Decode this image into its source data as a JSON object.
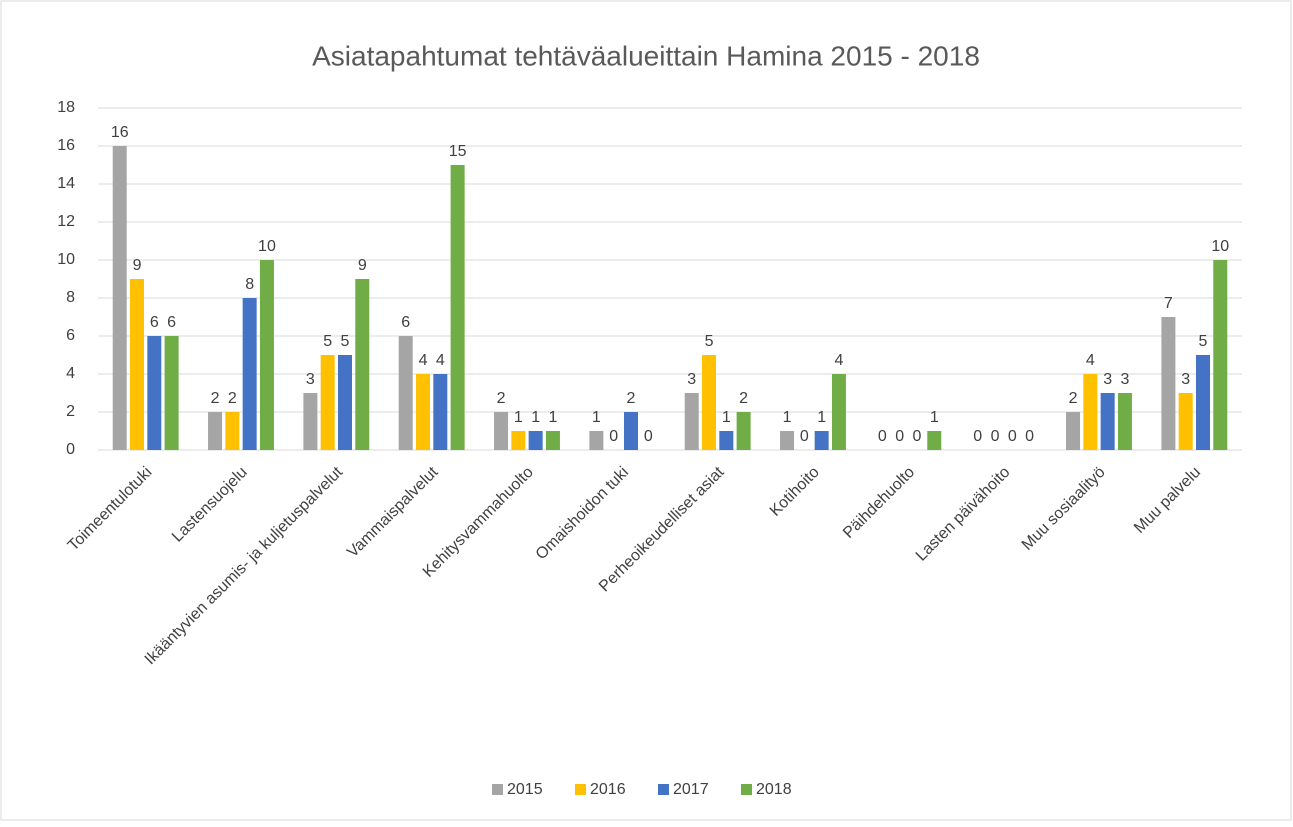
{
  "chart_data": {
    "type": "bar",
    "title": "Asiatapahtumat tehtäväalueittain Hamina 2015 - 2018",
    "categories": [
      "Toimeentulotuki",
      "Lastensuojelu",
      "Ikääntyvien asumis- ja kuljetuspalvelut",
      "Vammaispalvelut",
      "Kehitysvammahuolto",
      "Omaishoidon tuki",
      "Perheoikeudelliset asiat",
      "Kotihoito",
      "Päihdehuolto",
      "Lasten päivähoito",
      "Muu sosiaalityö",
      "Muu palvelu"
    ],
    "series": [
      {
        "name": "2015",
        "color": "#a5a5a5",
        "values": [
          16,
          2,
          3,
          6,
          2,
          1,
          3,
          1,
          0,
          0,
          2,
          7
        ]
      },
      {
        "name": "2016",
        "color": "#ffc000",
        "values": [
          9,
          2,
          5,
          4,
          1,
          0,
          5,
          0,
          0,
          0,
          4,
          3
        ]
      },
      {
        "name": "2017",
        "color": "#4472c4",
        "values": [
          6,
          8,
          5,
          4,
          1,
          2,
          1,
          1,
          0,
          0,
          3,
          5
        ]
      },
      {
        "name": "2018",
        "color": "#70ad47",
        "values": [
          6,
          10,
          9,
          15,
          1,
          0,
          2,
          4,
          1,
          0,
          3,
          10
        ]
      }
    ],
    "ylim": [
      0,
      18
    ],
    "yticks": [
      0,
      2,
      4,
      6,
      8,
      10,
      12,
      14,
      16,
      18
    ],
    "grid": true,
    "legend": "bottom"
  }
}
